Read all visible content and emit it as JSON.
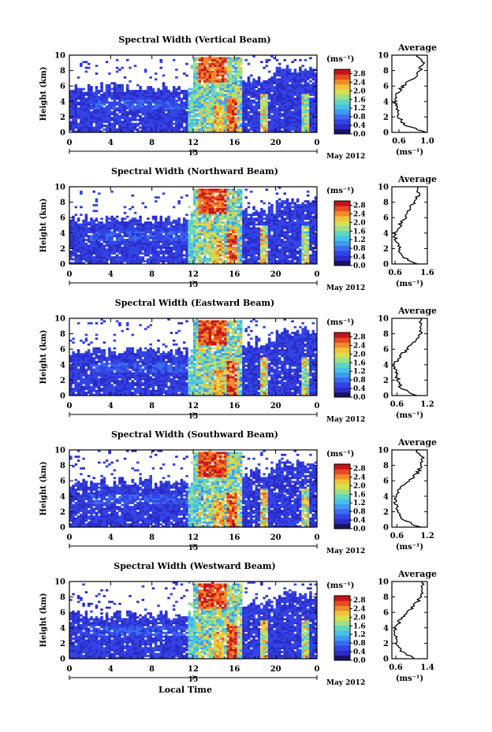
{
  "figure": {
    "bottom_xlabel": "Local Time",
    "date_label": "May 2012",
    "colorbar_unit": "(ms⁻¹)",
    "colorbar_ticks": [
      "0.0",
      "0.4",
      "0.8",
      "1.2",
      "1.6",
      "2.0",
      "2.4",
      "2.8"
    ],
    "colorbar_colors": [
      "#1b1464",
      "#2b2cc8",
      "#3344e6",
      "#3a6cf0",
      "#3f9af2",
      "#45c2e8",
      "#5fd6c0",
      "#9ee08a",
      "#d6e050",
      "#f4c23a",
      "#f08a2a",
      "#e84a22",
      "#c4141a"
    ],
    "average_title": "Average",
    "average_xlabel": "(ms⁻¹)",
    "ylabel": "Height (km)"
  },
  "chart_data": [
    {
      "type": "heatmap",
      "title": "Spectral Width (Vertical Beam)",
      "ylabel": "Height (km)",
      "x_ticks": [
        "0",
        "4",
        "8",
        "12",
        "16",
        "20",
        "0"
      ],
      "y_ticks": [
        "0",
        "2",
        "4",
        "6",
        "8",
        "10"
      ],
      "xlim": [
        0,
        24
      ],
      "ylim": [
        0,
        10
      ],
      "day_label": "15",
      "colorbar": {
        "min": 0.0,
        "max": 3.0
      },
      "profile": {
        "title": "Average",
        "xlim": [
          0.5,
          1.0
        ],
        "x_ticks": [
          "0.6",
          "1.0"
        ],
        "y": [
          0,
          1,
          2,
          3,
          4,
          5,
          6,
          7,
          8,
          9,
          10
        ],
        "x": [
          0.98,
          0.68,
          0.6,
          0.57,
          0.54,
          0.58,
          0.65,
          0.8,
          0.9,
          0.93,
          0.85
        ]
      }
    },
    {
      "type": "heatmap",
      "title": "Spectral Width (Northward Beam)",
      "ylabel": "Height (km)",
      "x_ticks": [
        "0",
        "4",
        "8",
        "12",
        "16",
        "20",
        "0"
      ],
      "y_ticks": [
        "0",
        "2",
        "4",
        "6",
        "8",
        "10"
      ],
      "xlim": [
        0,
        24
      ],
      "ylim": [
        0,
        10
      ],
      "day_label": "15",
      "colorbar": {
        "min": 0.0,
        "max": 3.0
      },
      "profile": {
        "title": "Average",
        "xlim": [
          0.5,
          1.6
        ],
        "x_ticks": [
          "0.6",
          "1.6"
        ],
        "y": [
          0,
          1,
          2,
          3,
          4,
          5,
          6,
          7,
          8,
          9,
          10
        ],
        "x": [
          1.3,
          0.8,
          0.75,
          0.62,
          0.6,
          0.75,
          0.9,
          1.05,
          1.2,
          1.35,
          1.25
        ]
      }
    },
    {
      "type": "heatmap",
      "title": "Spectral Width (Eastward Beam)",
      "ylabel": "Height (km)",
      "x_ticks": [
        "0",
        "4",
        "8",
        "12",
        "16",
        "20",
        "0"
      ],
      "y_ticks": [
        "0",
        "2",
        "4",
        "6",
        "8",
        "10"
      ],
      "xlim": [
        0,
        24
      ],
      "ylim": [
        0,
        10
      ],
      "day_label": "15",
      "colorbar": {
        "min": 0.0,
        "max": 3.0
      },
      "profile": {
        "title": "Average",
        "xlim": [
          0.5,
          1.2
        ],
        "x_ticks": [
          "0.6",
          "1.2"
        ],
        "y": [
          0,
          1,
          2,
          3,
          4,
          5,
          6,
          7,
          8,
          9,
          10
        ],
        "x": [
          1.0,
          0.68,
          0.62,
          0.58,
          0.56,
          0.64,
          0.8,
          0.95,
          1.05,
          1.1,
          1.05
        ]
      }
    },
    {
      "type": "heatmap",
      "title": "Spectral Width (Southward Beam)",
      "ylabel": "Height (km)",
      "x_ticks": [
        "0",
        "4",
        "8",
        "12",
        "16",
        "20",
        "0"
      ],
      "y_ticks": [
        "0",
        "2",
        "4",
        "6",
        "8",
        "10"
      ],
      "xlim": [
        0,
        24
      ],
      "ylim": [
        0,
        10
      ],
      "day_label": "15",
      "colorbar": {
        "min": 0.0,
        "max": 3.0
      },
      "profile": {
        "title": "Average",
        "xlim": [
          0.5,
          1.2
        ],
        "x_ticks": [
          "0.6",
          "1.2"
        ],
        "y": [
          0,
          1,
          2,
          3,
          4,
          5,
          6,
          7,
          8,
          9,
          10
        ],
        "x": [
          1.05,
          0.7,
          0.62,
          0.58,
          0.57,
          0.66,
          0.85,
          1.0,
          1.08,
          1.1,
          1.0
        ]
      }
    },
    {
      "type": "heatmap",
      "title": "Spectral Width (Westward Beam)",
      "ylabel": "Height (km)",
      "x_ticks": [
        "0",
        "4",
        "8",
        "12",
        "16",
        "20",
        "0"
      ],
      "y_ticks": [
        "0",
        "2",
        "4",
        "6",
        "8",
        "10"
      ],
      "xlim": [
        0,
        24
      ],
      "ylim": [
        0,
        10
      ],
      "day_label": "15",
      "colorbar": {
        "min": 0.0,
        "max": 3.0
      },
      "profile": {
        "title": "Average",
        "xlim": [
          0.5,
          1.4
        ],
        "x_ticks": [
          "0.6",
          "1.4"
        ],
        "y": [
          0,
          1,
          2,
          3,
          4,
          5,
          6,
          7,
          8,
          9,
          10
        ],
        "x": [
          1.1,
          0.72,
          0.64,
          0.6,
          0.6,
          0.7,
          0.9,
          1.1,
          1.22,
          1.3,
          1.25
        ]
      }
    }
  ]
}
